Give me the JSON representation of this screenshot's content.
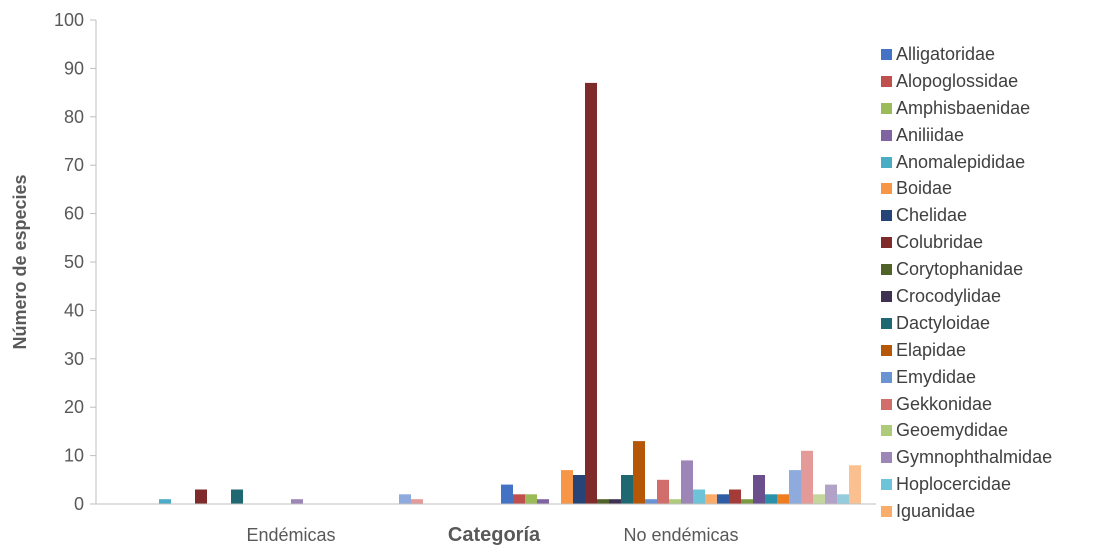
{
  "chart_data": {
    "type": "bar",
    "xlabel": "Categoría",
    "ylabel": "Número de especies",
    "ylim": [
      0,
      100
    ],
    "yticks": [
      0,
      10,
      20,
      30,
      40,
      50,
      60,
      70,
      80,
      90,
      100
    ],
    "grid": false,
    "legend_position": "right",
    "categories": [
      "Endémicas",
      "No endémicas"
    ],
    "series": [
      {
        "name": "Alligatoridae",
        "color": "#4472C4",
        "values": [
          0,
          4
        ]
      },
      {
        "name": "Alopoglossidae",
        "color": "#C0504D",
        "values": [
          0,
          2
        ]
      },
      {
        "name": "Amphisbaenidae",
        "color": "#9BBB59",
        "values": [
          0,
          2
        ]
      },
      {
        "name": "Aniliidae",
        "color": "#8064A2",
        "values": [
          0,
          1
        ]
      },
      {
        "name": "Anomalepididae",
        "color": "#4BACC6",
        "values": [
          1,
          0
        ]
      },
      {
        "name": "Boidae",
        "color": "#F79646",
        "values": [
          0,
          7
        ]
      },
      {
        "name": "Chelidae",
        "color": "#264478",
        "values": [
          0,
          6
        ]
      },
      {
        "name": "Colubridae",
        "color": "#7F2B2B",
        "values": [
          3,
          87
        ]
      },
      {
        "name": "Corytophanidae",
        "color": "#4F6228",
        "values": [
          0,
          1
        ]
      },
      {
        "name": "Crocodylidae",
        "color": "#3F3151",
        "values": [
          0,
          1
        ]
      },
      {
        "name": "Dactyloidae",
        "color": "#1F6872",
        "values": [
          3,
          6
        ]
      },
      {
        "name": "Elapidae",
        "color": "#B65708",
        "values": [
          0,
          13
        ]
      },
      {
        "name": "Emydidae",
        "color": "#6A93D4",
        "values": [
          0,
          1
        ]
      },
      {
        "name": "Gekkonidae",
        "color": "#D16E6B",
        "values": [
          0,
          5
        ]
      },
      {
        "name": "Geoemydidae",
        "color": "#AECB7C",
        "values": [
          0,
          1
        ]
      },
      {
        "name": "Gymnophthalmidae",
        "color": "#9C86B8",
        "values": [
          1,
          9
        ]
      },
      {
        "name": "Hoplocercidae",
        "color": "#6DC3D8",
        "values": [
          0,
          3
        ]
      },
      {
        "name": "Iguanidae",
        "color": "#FAAC6B",
        "values": [
          0,
          2
        ]
      },
      {
        "color": "#2E5DA6",
        "values": [
          0,
          2
        ]
      },
      {
        "color": "#A33C38",
        "values": [
          0,
          3
        ]
      },
      {
        "color": "#7C9A42",
        "values": [
          0,
          1
        ]
      },
      {
        "color": "#6A4F8C",
        "values": [
          0,
          6
        ]
      },
      {
        "color": "#2A91AB",
        "values": [
          0,
          2
        ]
      },
      {
        "color": "#F07C20",
        "values": [
          0,
          2
        ]
      },
      {
        "color": "#8FAADC",
        "values": [
          2,
          7
        ]
      },
      {
        "color": "#E39A98",
        "values": [
          1,
          11
        ]
      },
      {
        "color": "#C3D69B",
        "values": [
          0,
          2
        ]
      },
      {
        "color": "#B3A2C7",
        "values": [
          0,
          4
        ]
      },
      {
        "color": "#93CDDD",
        "values": [
          0,
          2
        ]
      },
      {
        "color": "#FAC090",
        "values": [
          0,
          8
        ]
      }
    ]
  }
}
